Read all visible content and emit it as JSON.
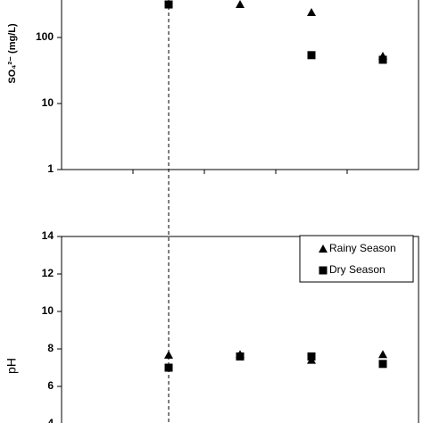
{
  "chart_data": [
    {
      "type": "scatter",
      "y_label": "SO₄²⁻ (mg/L)",
      "log_y": true,
      "categories": [
        null,
        null,
        null,
        null,
        null
      ],
      "ylim": [
        1,
        1000
      ],
      "yticks": [
        1,
        10,
        100
      ],
      "series": [
        {
          "name": "Rainy Season",
          "marker": "triangle",
          "color": "#000000",
          "values": [
            null,
            null,
            316,
            239,
            52
          ]
        },
        {
          "name": "Dry Season",
          "marker": "square",
          "color": "#000000",
          "values": [
            null,
            316,
            null,
            54,
            46
          ]
        }
      ]
    },
    {
      "type": "scatter",
      "y_label": "pH",
      "log_y": false,
      "legend": "upper right",
      "categories": [
        null,
        null,
        null,
        null,
        null
      ],
      "ylim": [
        4,
        14
      ],
      "yticks": [
        4,
        6,
        8,
        10,
        12,
        14
      ],
      "series": [
        {
          "name": "Rainy Season",
          "marker": "triangle",
          "color": "#000000",
          "values": [
            null,
            7.67,
            7.7,
            7.4,
            7.7
          ]
        },
        {
          "name": "Dry Season",
          "marker": "square",
          "color": "#000000",
          "values": [
            null,
            7.0,
            7.6,
            7.6,
            7.2
          ]
        }
      ]
    }
  ]
}
